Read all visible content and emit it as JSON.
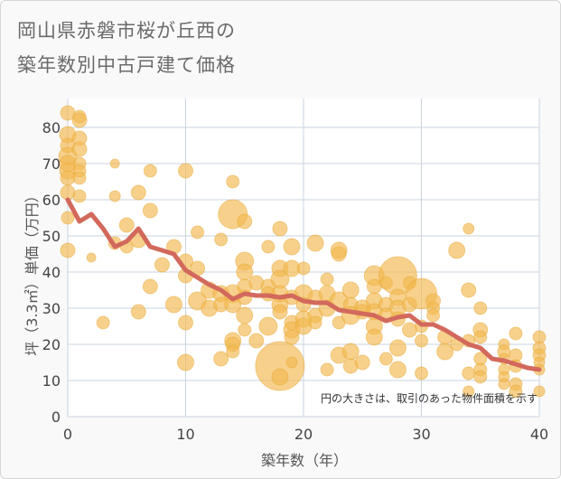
{
  "chart_data": {
    "type": "scatter",
    "title_lines": [
      "岡山県赤磐市桜が丘西の",
      "築年数別中古戸建て価格"
    ],
    "xlabel": "築年数（年）",
    "ylabel": "坪（3.3㎡）単価（万円）",
    "xlim": [
      0,
      40
    ],
    "ylim": [
      0,
      88
    ],
    "xticks": [
      0,
      10,
      20,
      30,
      40
    ],
    "yticks": [
      0,
      10,
      20,
      30,
      40,
      50,
      60,
      70,
      80
    ],
    "grid": true,
    "note": "円の大きさは、取引のあった物件面積を示す",
    "colors": {
      "bubble": "#f2b94e",
      "bubble_edge": "#e8a93a",
      "line": "#d2695c",
      "grid": "#c9d3df"
    },
    "bubbles": {
      "description_of_r": "relative circle size (area proxy)",
      "points": [
        [
          0,
          84,
          8
        ],
        [
          0,
          78,
          9
        ],
        [
          0,
          75,
          8
        ],
        [
          0,
          72,
          10
        ],
        [
          0,
          70,
          9
        ],
        [
          0,
          68,
          9
        ],
        [
          0,
          66,
          8
        ],
        [
          0,
          62,
          8
        ],
        [
          0,
          55,
          7
        ],
        [
          0,
          46,
          8
        ],
        [
          1,
          83,
          7
        ],
        [
          1,
          82,
          8
        ],
        [
          1,
          77,
          8
        ],
        [
          1,
          74,
          8
        ],
        [
          1,
          70,
          7
        ],
        [
          1,
          68,
          7
        ],
        [
          1,
          66,
          7
        ],
        [
          1,
          61,
          7
        ],
        [
          2,
          44,
          5
        ],
        [
          4,
          70,
          5
        ],
        [
          4,
          61,
          6
        ],
        [
          4,
          48,
          7
        ],
        [
          3,
          26,
          7
        ],
        [
          5,
          53,
          8
        ],
        [
          5,
          47,
          7
        ],
        [
          6,
          62,
          8
        ],
        [
          6,
          49,
          9
        ],
        [
          6,
          29,
          8
        ],
        [
          7,
          68,
          7
        ],
        [
          7,
          57,
          8
        ],
        [
          7,
          36,
          8
        ],
        [
          8,
          42,
          8
        ],
        [
          9,
          47,
          8
        ],
        [
          9,
          31,
          9
        ],
        [
          10,
          68,
          8
        ],
        [
          10,
          43,
          8
        ],
        [
          10,
          39,
          8
        ],
        [
          10,
          26,
          8
        ],
        [
          10,
          15,
          9
        ],
        [
          11,
          51,
          7
        ],
        [
          11,
          41,
          8
        ],
        [
          11,
          32,
          10
        ],
        [
          12,
          35,
          9
        ],
        [
          12,
          30,
          9
        ],
        [
          13,
          49,
          7
        ],
        [
          13,
          34,
          9
        ],
        [
          13,
          31,
          8
        ],
        [
          13,
          16,
          8
        ],
        [
          14,
          65,
          7
        ],
        [
          14,
          56,
          16
        ],
        [
          14,
          34,
          10
        ],
        [
          14,
          31,
          9
        ],
        [
          14,
          21,
          9
        ],
        [
          14,
          20,
          8
        ],
        [
          14,
          18,
          7
        ],
        [
          15,
          54,
          8
        ],
        [
          15,
          43,
          10
        ],
        [
          15,
          40,
          9
        ],
        [
          15,
          36,
          8
        ],
        [
          15,
          33,
          8
        ],
        [
          15,
          28,
          9
        ],
        [
          15,
          24,
          7
        ],
        [
          16,
          37,
          8
        ],
        [
          16,
          21,
          8
        ],
        [
          17,
          47,
          7
        ],
        [
          17,
          36,
          8
        ],
        [
          17,
          34,
          8
        ],
        [
          17,
          25,
          10
        ],
        [
          18,
          52,
          8
        ],
        [
          18,
          41,
          9
        ],
        [
          18,
          38,
          10
        ],
        [
          18,
          34,
          9
        ],
        [
          18,
          31,
          9
        ],
        [
          18,
          29,
          8
        ],
        [
          18,
          14,
          27
        ],
        [
          18,
          11,
          9
        ],
        [
          19,
          47,
          9
        ],
        [
          19,
          41,
          9
        ],
        [
          19,
          33,
          8
        ],
        [
          19,
          26,
          8
        ],
        [
          19,
          24,
          9
        ],
        [
          19,
          22,
          8
        ],
        [
          19,
          15,
          6
        ],
        [
          20,
          41,
          7
        ],
        [
          20,
          34,
          10
        ],
        [
          20,
          31,
          8
        ],
        [
          20,
          27,
          9
        ],
        [
          20,
          25,
          9
        ],
        [
          21,
          48,
          9
        ],
        [
          21,
          33,
          8
        ],
        [
          21,
          28,
          8
        ],
        [
          21,
          26,
          7
        ],
        [
          22,
          38,
          7
        ],
        [
          22,
          34,
          9
        ],
        [
          22,
          30,
          9
        ],
        [
          22,
          13,
          7
        ],
        [
          23,
          46,
          9
        ],
        [
          23,
          45,
          8
        ],
        [
          23,
          32,
          10
        ],
        [
          23,
          26,
          7
        ],
        [
          23,
          17,
          9
        ],
        [
          24,
          35,
          9
        ],
        [
          24,
          31,
          8
        ],
        [
          24,
          28,
          10
        ],
        [
          24,
          18,
          9
        ],
        [
          24,
          14,
          8
        ],
        [
          25,
          30,
          9
        ],
        [
          25,
          29,
          8
        ],
        [
          25,
          15,
          8
        ],
        [
          26,
          39,
          11
        ],
        [
          26,
          36,
          8
        ],
        [
          26,
          32,
          9
        ],
        [
          26,
          29,
          9
        ],
        [
          26,
          25,
          9
        ],
        [
          26,
          22,
          9
        ],
        [
          27,
          37,
          7
        ],
        [
          27,
          31,
          8
        ],
        [
          27,
          28,
          8
        ],
        [
          27,
          16,
          7
        ],
        [
          28,
          39,
          21
        ],
        [
          28,
          33,
          9
        ],
        [
          28,
          30,
          9
        ],
        [
          28,
          27,
          8
        ],
        [
          28,
          19,
          9
        ],
        [
          28,
          13,
          9
        ],
        [
          29,
          37,
          7
        ],
        [
          29,
          31,
          8
        ],
        [
          29,
          24,
          8
        ],
        [
          30,
          34,
          17
        ],
        [
          30,
          25,
          7
        ],
        [
          30,
          21,
          7
        ],
        [
          30,
          12,
          7
        ],
        [
          31,
          32,
          8
        ],
        [
          31,
          30,
          7
        ],
        [
          31,
          28,
          7
        ],
        [
          32,
          22,
          8
        ],
        [
          32,
          18,
          9
        ],
        [
          33,
          46,
          9
        ],
        [
          33,
          20,
          7
        ],
        [
          34,
          52,
          6
        ],
        [
          34,
          35,
          8
        ],
        [
          34,
          21,
          7
        ],
        [
          34,
          12,
          7
        ],
        [
          34,
          7,
          6
        ],
        [
          35,
          30,
          7
        ],
        [
          35,
          24,
          8
        ],
        [
          35,
          22,
          7
        ],
        [
          35,
          16,
          7
        ],
        [
          35,
          13,
          7
        ],
        [
          35,
          11,
          7
        ],
        [
          37,
          20,
          6
        ],
        [
          37,
          18,
          7
        ],
        [
          37,
          16,
          6
        ],
        [
          37,
          13,
          6
        ],
        [
          37,
          11,
          6
        ],
        [
          37,
          9,
          6
        ],
        [
          38,
          23,
          7
        ],
        [
          38,
          17,
          7
        ],
        [
          38,
          14,
          7
        ],
        [
          38,
          9,
          7
        ],
        [
          38,
          7,
          7
        ],
        [
          40,
          22,
          7
        ],
        [
          40,
          19,
          7
        ],
        [
          40,
          17,
          7
        ],
        [
          40,
          15,
          6
        ],
        [
          40,
          13,
          6
        ],
        [
          40,
          7,
          6
        ]
      ]
    },
    "series": [
      {
        "type": "line",
        "x": [
          0,
          1,
          2,
          3,
          4,
          5,
          6,
          7,
          8,
          9,
          10,
          11,
          12,
          13,
          14,
          15,
          16,
          17,
          18,
          19,
          20,
          21,
          22,
          23,
          24,
          25,
          26,
          27,
          28,
          29,
          30,
          31,
          32,
          33,
          34,
          35,
          36,
          37,
          38,
          39,
          40
        ],
        "y": [
          60,
          54,
          56,
          52,
          47,
          48.5,
          52,
          47,
          46,
          45,
          40.5,
          38.5,
          36.5,
          35,
          32.5,
          34,
          33.5,
          33.5,
          33,
          33.5,
          32,
          31.5,
          31.5,
          29.5,
          29,
          28.5,
          28,
          26.5,
          27.5,
          28,
          25.5,
          25.5,
          24,
          22,
          20,
          19,
          16,
          15.5,
          14.5,
          13.5,
          13
        ]
      }
    ]
  }
}
